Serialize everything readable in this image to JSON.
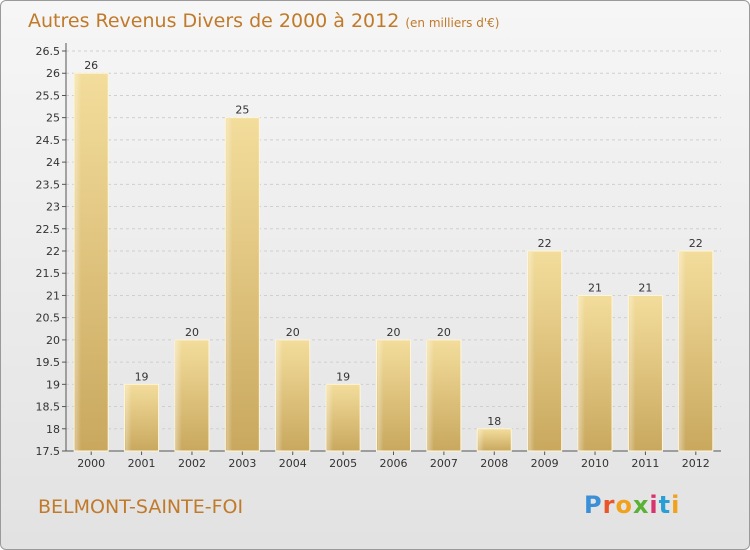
{
  "header": {
    "title": "Autres Revenus Divers de 2000 à 2012",
    "unit": "(en milliers d'€)"
  },
  "footer": {
    "city": "BELMONT-SAINTE-FOI",
    "brand": "Proxiti"
  },
  "colors": {
    "bar_light": "#f3dd9c",
    "bar_dark": "#c9a85e",
    "title": "#c07a2a",
    "grid": "#cfcfcf",
    "logo": [
      "#3a8fd6",
      "#e8562a",
      "#f0a21c",
      "#5bb135",
      "#d8326f",
      "#2a9fd6",
      "#f0a21c"
    ]
  },
  "chart_data": {
    "type": "bar",
    "categories": [
      "2000",
      "2001",
      "2002",
      "2003",
      "2004",
      "2005",
      "2006",
      "2007",
      "2008",
      "2009",
      "2010",
      "2011",
      "2012"
    ],
    "values": [
      26,
      19,
      20,
      25,
      20,
      19,
      20,
      20,
      18,
      22,
      21,
      21,
      22
    ],
    "ylim": [
      17.5,
      26.5
    ],
    "yticks": [
      "17.5",
      "18",
      "18.5",
      "19",
      "19.5",
      "20",
      "20.5",
      "21",
      "21.5",
      "22",
      "22.5",
      "23",
      "23.5",
      "24",
      "24.5",
      "25",
      "25.5",
      "26",
      "26.5"
    ],
    "grid": true,
    "title": "Autres Revenus Divers de 2000 à 2012",
    "ylabel": "",
    "xlabel": ""
  }
}
